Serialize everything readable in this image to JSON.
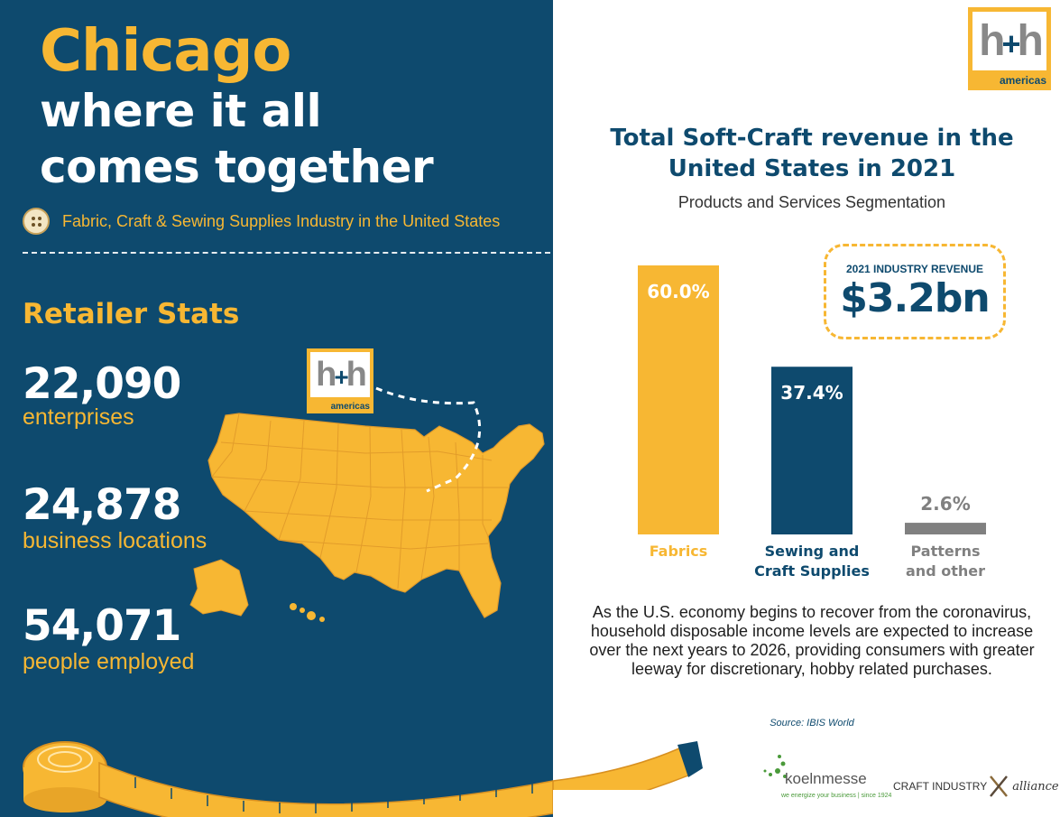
{
  "headline": {
    "city": "Chicago",
    "line2": "where it all",
    "line3": "comes together"
  },
  "industry": "Fabric, Craft & Sewing Supplies Industry in the United States",
  "retail": {
    "title": "Retailer Stats",
    "stats": [
      {
        "value": "22,090",
        "label": "enterprises"
      },
      {
        "value": "24,878",
        "label": "business locations"
      },
      {
        "value": "54,071",
        "label": "people employed"
      }
    ]
  },
  "logo": {
    "letters_left": "h",
    "plus": "+",
    "letters_right": "h",
    "sub": "americas"
  },
  "revenue_box": {
    "label": "2021 INDUSTRY REVENUE",
    "value": "$3.2bn"
  },
  "chart_data": {
    "type": "bar",
    "title": "Total Soft-Craft revenue in the United States in 2021",
    "subtitle": "Products and Services Segmentation",
    "categories": [
      [
        "Fabrics"
      ],
      [
        "Sewing and",
        "Craft Supplies"
      ],
      [
        "Patterns",
        "and other"
      ]
    ],
    "values": [
      60.0,
      37.4,
      2.6
    ],
    "value_labels": [
      "60.0%",
      "37.4%",
      "2.6%"
    ],
    "colors": [
      "#f7b733",
      "#0e4a6e",
      "#808080"
    ],
    "label_colors": [
      "#f7b733",
      "#0e4a6e",
      "#808080"
    ],
    "ylim": [
      0,
      60
    ]
  },
  "body": "As the U.S. economy begins to recover from the coronavirus, household disposable income levels are expected to increase over the next years to 2026, providing consumers with greater leeway for discretionary, hobby related purchases.",
  "source": "Source: IBIS World",
  "sponsors": {
    "koelnmesse": "koelnmesse",
    "koelnmesse_tag": "we energize your business | since 1924",
    "cia_text": "CRAFT INDUSTRY",
    "cia_script": "alliance"
  },
  "colors": {
    "navy": "#0e4a6e",
    "gold": "#f7b733",
    "gray": "#808080"
  }
}
